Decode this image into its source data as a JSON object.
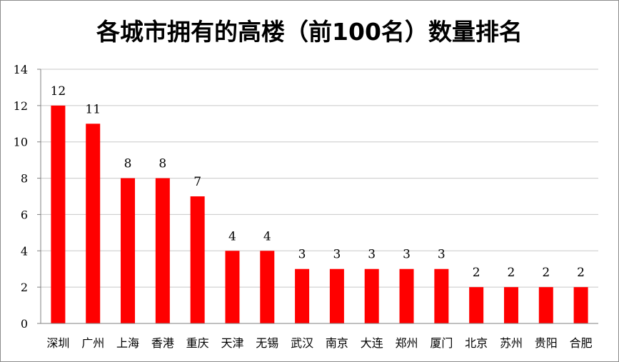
{
  "chart_data": {
    "type": "bar",
    "title": "各城市拥有的高楼（前100名）数量排名",
    "categories": [
      "深圳",
      "广州",
      "上海",
      "香港",
      "重庆",
      "天津",
      "无锡",
      "武汉",
      "南京",
      "大连",
      "郑州",
      "厦门",
      "北京",
      "苏州",
      "贵阳",
      "合肥"
    ],
    "values": [
      12,
      11,
      8,
      8,
      7,
      4,
      4,
      3,
      3,
      3,
      3,
      3,
      2,
      2,
      2,
      2
    ],
    "ylim": [
      0,
      14
    ],
    "yticks": [
      0,
      2,
      4,
      6,
      8,
      10,
      12,
      14
    ],
    "grid": true,
    "data_labels": true,
    "bar_color": "#ff0000",
    "grid_color": "#c8c8c8"
  }
}
